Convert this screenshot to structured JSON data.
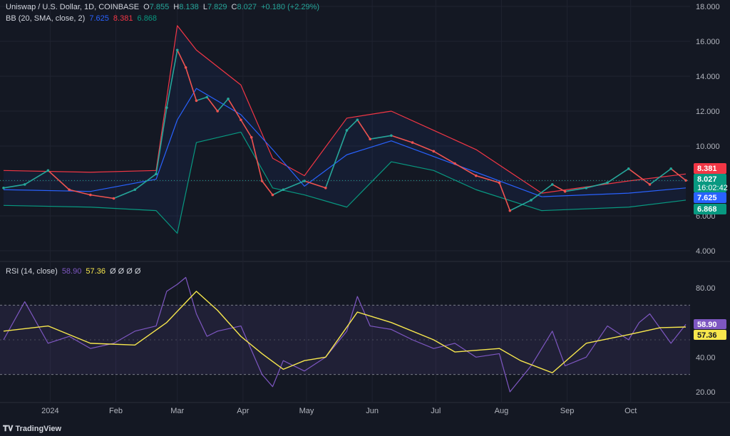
{
  "header": {
    "symbol": "Uniswap / U.S. Dollar, 1D, COINBASE",
    "o_label": "O",
    "o_value": "7.855",
    "h_label": "H",
    "h_value": "8.138",
    "l_label": "L",
    "l_value": "7.829",
    "c_label": "C",
    "c_value": "8.027",
    "change": "+0.180 (+2.29%)",
    "bb_label": "BB (20, SMA, close, 2)",
    "bb_mid": "7.625",
    "bb_up": "8.381",
    "bb_low": "6.868",
    "rsi_label": "RSI (14, close)",
    "rsi_value": "58.90",
    "rsi_ma": "57.36",
    "rsi_extra": "Ø Ø Ø Ø"
  },
  "price_tags": {
    "upper": "8.381",
    "close": "8.027",
    "countdown": "16:02:42",
    "mid": "7.625",
    "lower": "6.868"
  },
  "rsi_tags": {
    "rsi": "58.90",
    "ma": "57.36"
  },
  "footer": {
    "brand": "TradingView"
  },
  "colors": {
    "up": "#26a69a",
    "down": "#ef5350",
    "bb_mid": "#2962ff",
    "bb_up": "#f23645",
    "bb_low": "#089981",
    "rsi": "#7e57c2",
    "rsi_ma": "#f7e74d",
    "bg": "#141823"
  },
  "chart_data": [
    {
      "type": "line",
      "title": "Uniswap / U.S. Dollar, 1D, COINBASE",
      "ylim": [
        4,
        18
      ],
      "yticks": [
        "4.000",
        "6.000",
        "8.000",
        "10.000",
        "12.000",
        "14.000",
        "16.000",
        "18.000"
      ],
      "xticks": [
        "2024",
        "Feb",
        "Mar",
        "Apr",
        "May",
        "Jun",
        "Jul",
        "Aug",
        "Sep",
        "Oct"
      ],
      "series": [
        {
          "name": "Close",
          "x": [
            "2023-12-10",
            "2023-12-20",
            "2023-12-31",
            "2024-01-10",
            "2024-01-20",
            "2024-01-31",
            "2024-02-10",
            "2024-02-20",
            "2024-02-25",
            "2024-03-01",
            "2024-03-05",
            "2024-03-10",
            "2024-03-15",
            "2024-03-20",
            "2024-03-25",
            "2024-03-31",
            "2024-04-05",
            "2024-04-10",
            "2024-04-15",
            "2024-04-20",
            "2024-04-30",
            "2024-05-10",
            "2024-05-20",
            "2024-05-25",
            "2024-05-31",
            "2024-06-10",
            "2024-06-20",
            "2024-06-30",
            "2024-07-10",
            "2024-07-20",
            "2024-07-31",
            "2024-08-05",
            "2024-08-15",
            "2024-08-25",
            "2024-08-31",
            "2024-09-10",
            "2024-09-20",
            "2024-09-30",
            "2024-10-10",
            "2024-10-20",
            "2024-10-27"
          ],
          "values": [
            7.6,
            7.8,
            8.6,
            7.5,
            7.2,
            7.0,
            7.5,
            8.4,
            12.2,
            15.5,
            14.5,
            12.6,
            12.8,
            12.0,
            12.7,
            11.5,
            10.5,
            8.0,
            7.2,
            7.5,
            8.0,
            7.6,
            10.9,
            11.5,
            10.4,
            10.6,
            10.2,
            9.7,
            9.0,
            8.3,
            7.9,
            6.3,
            6.9,
            7.8,
            7.4,
            7.6,
            7.9,
            8.7,
            7.8,
            8.7,
            8.03
          ]
        },
        {
          "name": "BB upper",
          "x": [
            "2023-12-10",
            "2024-01-20",
            "2024-02-20",
            "2024-03-01",
            "2024-03-10",
            "2024-03-31",
            "2024-04-15",
            "2024-04-30",
            "2024-05-20",
            "2024-06-10",
            "2024-06-30",
            "2024-07-20",
            "2024-08-20",
            "2024-09-30",
            "2024-10-27"
          ],
          "values": [
            8.6,
            8.5,
            8.6,
            16.9,
            15.5,
            13.5,
            9.3,
            8.3,
            11.6,
            12.0,
            10.9,
            9.8,
            7.3,
            8.0,
            8.4
          ]
        },
        {
          "name": "BB basis",
          "x": [
            "2023-12-10",
            "2024-01-20",
            "2024-02-20",
            "2024-03-01",
            "2024-03-10",
            "2024-03-31",
            "2024-04-15",
            "2024-04-30",
            "2024-05-20",
            "2024-06-10",
            "2024-06-30",
            "2024-07-20",
            "2024-08-20",
            "2024-09-30",
            "2024-10-27"
          ],
          "values": [
            7.5,
            7.4,
            8.1,
            11.5,
            13.3,
            11.8,
            9.8,
            7.7,
            9.5,
            10.3,
            9.4,
            8.5,
            7.1,
            7.3,
            7.6
          ]
        },
        {
          "name": "BB lower",
          "x": [
            "2023-12-10",
            "2024-01-20",
            "2024-02-20",
            "2024-03-01",
            "2024-03-10",
            "2024-03-31",
            "2024-04-15",
            "2024-04-30",
            "2024-05-20",
            "2024-06-10",
            "2024-06-30",
            "2024-07-20",
            "2024-08-20",
            "2024-09-30",
            "2024-10-27"
          ],
          "values": [
            6.6,
            6.5,
            6.3,
            5.0,
            10.2,
            10.8,
            7.6,
            7.2,
            6.5,
            9.1,
            8.6,
            7.5,
            6.3,
            6.5,
            6.9
          ]
        }
      ]
    },
    {
      "type": "line",
      "title": "RSI (14, close)",
      "ylim": [
        20,
        90
      ],
      "yticks": [
        "20.00",
        "40.00",
        "60.00",
        "80.00"
      ],
      "bands": [
        30,
        70
      ],
      "series": [
        {
          "name": "RSI",
          "x": [
            "2023-12-10",
            "2023-12-20",
            "2023-12-31",
            "2024-01-10",
            "2024-01-20",
            "2024-01-31",
            "2024-02-10",
            "2024-02-20",
            "2024-02-25",
            "2024-03-01",
            "2024-03-05",
            "2024-03-10",
            "2024-03-15",
            "2024-03-20",
            "2024-03-31",
            "2024-04-10",
            "2024-04-15",
            "2024-04-20",
            "2024-04-30",
            "2024-05-10",
            "2024-05-20",
            "2024-05-25",
            "2024-05-31",
            "2024-06-10",
            "2024-06-20",
            "2024-06-30",
            "2024-07-10",
            "2024-07-20",
            "2024-07-31",
            "2024-08-05",
            "2024-08-15",
            "2024-08-25",
            "2024-08-31",
            "2024-09-10",
            "2024-09-20",
            "2024-09-30",
            "2024-10-05",
            "2024-10-10",
            "2024-10-20",
            "2024-10-27"
          ],
          "values": [
            50,
            72,
            48,
            52,
            45,
            48,
            55,
            58,
            78,
            82,
            86,
            65,
            52,
            55,
            58,
            30,
            23,
            38,
            32,
            40,
            55,
            75,
            58,
            56,
            50,
            45,
            48,
            40,
            42,
            20,
            35,
            55,
            35,
            40,
            58,
            50,
            60,
            65,
            48,
            58.9
          ]
        },
        {
          "name": "RSI-based MA",
          "x": [
            "2023-12-10",
            "2023-12-31",
            "2024-01-20",
            "2024-02-10",
            "2024-02-25",
            "2024-03-10",
            "2024-03-20",
            "2024-03-31",
            "2024-04-10",
            "2024-04-20",
            "2024-04-30",
            "2024-05-10",
            "2024-05-25",
            "2024-06-10",
            "2024-06-30",
            "2024-07-10",
            "2024-07-31",
            "2024-08-10",
            "2024-08-25",
            "2024-09-10",
            "2024-09-30",
            "2024-10-15",
            "2024-10-27"
          ],
          "values": [
            55,
            58,
            48,
            47,
            60,
            78,
            67,
            52,
            42,
            33,
            38,
            40,
            66,
            60,
            50,
            43,
            45,
            38,
            31,
            48,
            53,
            57,
            57.4
          ]
        }
      ]
    }
  ]
}
